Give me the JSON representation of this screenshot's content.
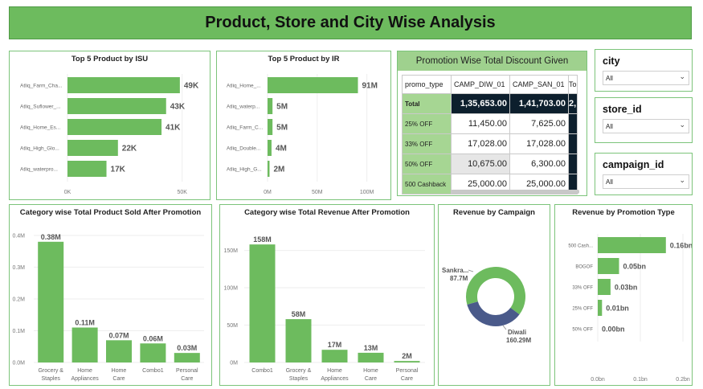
{
  "title": "Product, Store and City Wise Analysis",
  "slicers": [
    {
      "label": "city",
      "value": "All"
    },
    {
      "label": "store_id",
      "value": "All"
    },
    {
      "label": "campaign_id",
      "value": "All"
    }
  ],
  "promo_table": {
    "title": "Promotion Wise Total Discount Given",
    "columns": [
      "promo_type",
      "CAMP_DIW_01",
      "CAMP_SAN_01",
      "To"
    ],
    "total_row": {
      "label": "Total",
      "values": [
        "1,35,653.00",
        "1,41,703.00",
        "2,"
      ]
    },
    "rows": [
      {
        "label": "25% OFF",
        "values": [
          "11,450.00",
          "7,625.00"
        ]
      },
      {
        "label": "33% OFF",
        "values": [
          "17,028.00",
          "17,028.00"
        ]
      },
      {
        "label": "50% OFF",
        "values": [
          "10,675.00",
          "6,300.00"
        ]
      },
      {
        "label": "500 Cashback",
        "values": [
          "25,000.00",
          "25,000.00"
        ]
      }
    ]
  },
  "colors": {
    "bar": "#6dbb5e",
    "donut_dark": "#4a5a8a",
    "accent_dark": "#0d1f2d"
  },
  "chart_data": [
    {
      "type": "bar",
      "orientation": "horizontal",
      "title": "Top 5 Product by ISU",
      "categories": [
        "Atliq_Farm_Cha...",
        "Atliq_Suflower_...",
        "Atliq_Home_Es...",
        "Atliq_High_Glo...",
        "Atliq_waterpro..."
      ],
      "values": [
        49,
        43,
        41,
        22,
        17
      ],
      "labels": [
        "49K",
        "43K",
        "41K",
        "22K",
        "17K"
      ],
      "xlim": [
        0,
        55
      ],
      "ticks": [
        0,
        50
      ],
      "tick_labels": [
        "0K",
        "50K"
      ]
    },
    {
      "type": "bar",
      "orientation": "horizontal",
      "title": "Top 5 Product by IR",
      "categories": [
        "Atliq_Home_...",
        "Atliq_waterp...",
        "Atliq_Farm_C...",
        "Atliq_Double...",
        "Atliq_High_G..."
      ],
      "values": [
        91,
        5,
        5,
        4,
        2
      ],
      "labels": [
        "91M",
        "5M",
        "5M",
        "4M",
        "2M"
      ],
      "xlim": [
        0,
        110
      ],
      "ticks": [
        0,
        50,
        100
      ],
      "tick_labels": [
        "0M",
        "50M",
        "100M"
      ]
    },
    {
      "type": "bar",
      "title": "Category wise Total Product Sold After Promotion",
      "categories": [
        "Grocery & Staples",
        "Home Appliances",
        "Home Care",
        "Combo1",
        "Personal Care"
      ],
      "values": [
        0.38,
        0.11,
        0.07,
        0.06,
        0.03
      ],
      "labels": [
        "0.38M",
        "0.11M",
        "0.07M",
        "0.06M",
        "0.03M"
      ],
      "ylim": [
        0,
        0.42
      ],
      "ticks": [
        0,
        0.1,
        0.2,
        0.3,
        0.4
      ],
      "tick_labels": [
        "0.0M",
        "0.1M",
        "0.2M",
        "0.3M",
        "0.4M"
      ]
    },
    {
      "type": "bar",
      "title": "Category wise Total Revenue After Promotion",
      "categories": [
        "Combo1",
        "Grocery & Staples",
        "Home Appliances",
        "Home Care",
        "Personal Care"
      ],
      "values": [
        158,
        58,
        17,
        13,
        2
      ],
      "labels": [
        "158M",
        "58M",
        "17M",
        "13M",
        "2M"
      ],
      "ylim": [
        0,
        170
      ],
      "ticks": [
        0,
        50,
        100,
        150
      ],
      "tick_labels": [
        "0M",
        "50M",
        "100M",
        "150M"
      ]
    },
    {
      "type": "pie",
      "donut": true,
      "title": "Revenue by Campaign",
      "slices": [
        {
          "name": "Diwali",
          "value": 160.29,
          "label": "160.29M",
          "color": "#6dbb5e"
        },
        {
          "name": "Sankra...",
          "value": 87.7,
          "label": "87.7M",
          "color": "#4a5a8a"
        }
      ]
    },
    {
      "type": "bar",
      "orientation": "horizontal",
      "title": "Revenue by Promotion Type",
      "categories": [
        "500 Cash...",
        "BOGOF",
        "33% OFF",
        "25% OFF",
        "50% OFF"
      ],
      "values": [
        0.16,
        0.05,
        0.03,
        0.01,
        0.0
      ],
      "labels": [
        "0.16bn",
        "0.05bn",
        "0.03bn",
        "0.01bn",
        "0.00bn"
      ],
      "xlim": [
        0,
        0.2
      ],
      "ticks": [
        0,
        0.1,
        0.2
      ],
      "tick_labels": [
        "0.0bn",
        "0.1bn",
        "0.2bn"
      ]
    }
  ]
}
